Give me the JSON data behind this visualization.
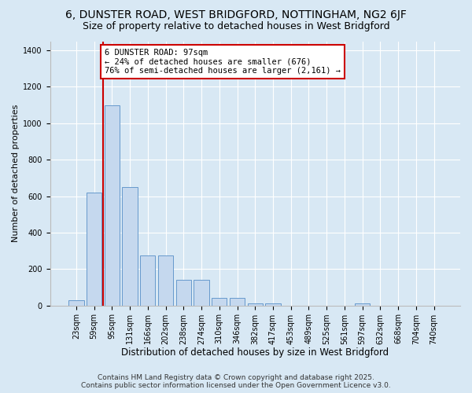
{
  "title1": "6, DUNSTER ROAD, WEST BRIDGFORD, NOTTINGHAM, NG2 6JF",
  "title2": "Size of property relative to detached houses in West Bridgford",
  "xlabel": "Distribution of detached houses by size in West Bridgford",
  "ylabel": "Number of detached properties",
  "categories": [
    "23sqm",
    "59sqm",
    "95sqm",
    "131sqm",
    "166sqm",
    "202sqm",
    "238sqm",
    "274sqm",
    "310sqm",
    "346sqm",
    "382sqm",
    "417sqm",
    "453sqm",
    "489sqm",
    "525sqm",
    "561sqm",
    "597sqm",
    "632sqm",
    "668sqm",
    "704sqm",
    "740sqm"
  ],
  "values": [
    30,
    620,
    1100,
    650,
    275,
    275,
    140,
    140,
    40,
    40,
    10,
    10,
    0,
    0,
    0,
    0,
    10,
    0,
    0,
    0,
    0
  ],
  "bar_color": "#c5d8ee",
  "bar_edge_color": "#6699cc",
  "annotation_text": "6 DUNSTER ROAD: 97sqm\n← 24% of detached houses are smaller (676)\n76% of semi-detached houses are larger (2,161) →",
  "annotation_box_facecolor": "#ffffff",
  "annotation_box_edgecolor": "#cc0000",
  "vline_color": "#cc0000",
  "vline_x_index": 2,
  "ylim": [
    0,
    1450
  ],
  "yticks": [
    0,
    200,
    400,
    600,
    800,
    1000,
    1200,
    1400
  ],
  "bg_color": "#d8e8f4",
  "plot_bg_color": "#d8e8f4",
  "footer1": "Contains HM Land Registry data © Crown copyright and database right 2025.",
  "footer2": "Contains public sector information licensed under the Open Government Licence v3.0.",
  "title1_fontsize": 10,
  "title2_fontsize": 9,
  "xlabel_fontsize": 8.5,
  "ylabel_fontsize": 8,
  "tick_fontsize": 7,
  "annotation_fontsize": 7.5,
  "footer_fontsize": 6.5
}
